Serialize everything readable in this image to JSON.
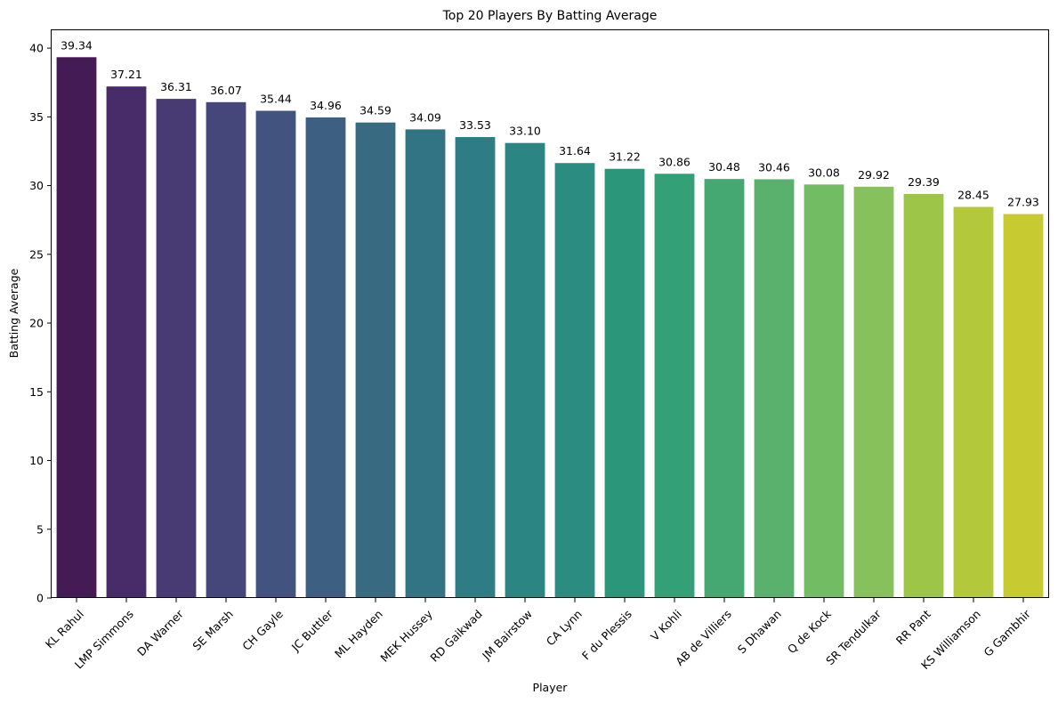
{
  "chart_data": {
    "type": "bar",
    "title": "Top 20 Players By Batting Average",
    "xlabel": "Player",
    "ylabel": "Batting Average",
    "ylim": [
      0,
      41.3
    ],
    "yticks": [
      0,
      5,
      10,
      15,
      20,
      25,
      30,
      35,
      40
    ],
    "grid": false,
    "legend": "none",
    "palette": "viridis",
    "categories": [
      "KL Rahul",
      "LMP Simmons",
      "DA Warner",
      "SE Marsh",
      "CH Gayle",
      "JC Buttler",
      "ML Hayden",
      "MEK Hussey",
      "RD Gaikwad",
      "JM Bairstow",
      "CA Lynn",
      "F du Plessis",
      "V Kohli",
      "AB de Villiers",
      "S Dhawan",
      "Q de Kock",
      "SR Tendulkar",
      "RR Pant",
      "KS Williamson",
      "G Gambhir"
    ],
    "values": [
      39.34,
      37.21,
      36.31,
      36.07,
      35.44,
      34.96,
      34.59,
      34.09,
      33.53,
      33.1,
      31.64,
      31.22,
      30.86,
      30.48,
      30.46,
      30.08,
      29.92,
      29.39,
      28.45,
      27.93
    ],
    "data_labels": [
      "39.34",
      "37.21",
      "36.31",
      "36.07",
      "35.44",
      "34.96",
      "34.59",
      "34.09",
      "33.53",
      "33.10",
      "31.64",
      "31.22",
      "30.86",
      "30.48",
      "30.46",
      "30.08",
      "29.92",
      "29.39",
      "28.45",
      "27.93"
    ],
    "colors": [
      "#451b56",
      "#482c6a",
      "#483a72",
      "#45467a",
      "#42537f",
      "#3d5f81",
      "#386a82",
      "#327483",
      "#2e7d84",
      "#2b8683",
      "#2a8d7f",
      "#2b967a",
      "#33a077",
      "#45a872",
      "#59b16d",
      "#72bc64",
      "#87c15b",
      "#9dc649",
      "#b3c83a",
      "#c8ca31"
    ]
  }
}
